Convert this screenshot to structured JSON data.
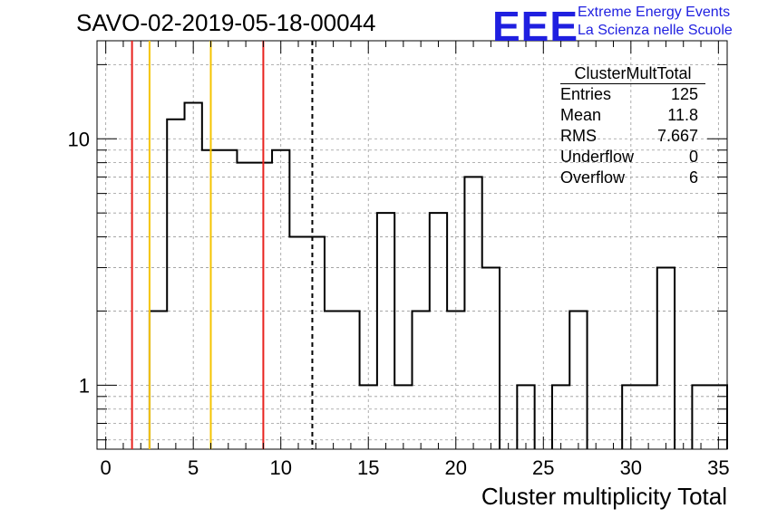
{
  "title": "SAVO-02-2019-05-18-00044",
  "logo": {
    "mark": "EEE",
    "line1": "Extreme Energy Events",
    "line2": "La Scienza nelle Scuole"
  },
  "stats": {
    "name": "ClusterMultTotal",
    "rows": [
      {
        "label": "Entries",
        "value": "125"
      },
      {
        "label": "Mean",
        "value": "11.8"
      },
      {
        "label": "RMS",
        "value": "7.667"
      },
      {
        "label": "Underflow",
        "value": "0"
      },
      {
        "label": "Overflow",
        "value": "6"
      }
    ]
  },
  "chart_data": {
    "type": "histogram",
    "xlabel": "Cluster multiplicity Total",
    "ylabel": "",
    "log_y": true,
    "grid": true,
    "xlim": [
      -0.5,
      35.5
    ],
    "ylim": [
      0.55,
      25
    ],
    "x_ticks": [
      0,
      5,
      10,
      15,
      20,
      25,
      30,
      35
    ],
    "y_ticks": [
      1,
      10
    ],
    "bins": [
      {
        "x": 0,
        "y": 0
      },
      {
        "x": 1,
        "y": 0
      },
      {
        "x": 2,
        "y": 0
      },
      {
        "x": 3,
        "y": 2
      },
      {
        "x": 4,
        "y": 12
      },
      {
        "x": 5,
        "y": 14
      },
      {
        "x": 6,
        "y": 9
      },
      {
        "x": 7,
        "y": 9
      },
      {
        "x": 8,
        "y": 8
      },
      {
        "x": 9,
        "y": 8
      },
      {
        "x": 10,
        "y": 9
      },
      {
        "x": 11,
        "y": 4
      },
      {
        "x": 12,
        "y": 4
      },
      {
        "x": 13,
        "y": 2
      },
      {
        "x": 14,
        "y": 2
      },
      {
        "x": 15,
        "y": 1
      },
      {
        "x": 16,
        "y": 5
      },
      {
        "x": 17,
        "y": 1
      },
      {
        "x": 18,
        "y": 2
      },
      {
        "x": 19,
        "y": 5
      },
      {
        "x": 20,
        "y": 2
      },
      {
        "x": 21,
        "y": 7
      },
      {
        "x": 22,
        "y": 3
      },
      {
        "x": 23,
        "y": 0
      },
      {
        "x": 24,
        "y": 1
      },
      {
        "x": 25,
        "y": 0
      },
      {
        "x": 26,
        "y": 1
      },
      {
        "x": 27,
        "y": 2
      },
      {
        "x": 28,
        "y": 0
      },
      {
        "x": 29,
        "y": 0
      },
      {
        "x": 30,
        "y": 1
      },
      {
        "x": 31,
        "y": 1
      },
      {
        "x": 32,
        "y": 3
      },
      {
        "x": 33,
        "y": 0
      },
      {
        "x": 34,
        "y": 1
      },
      {
        "x": 35,
        "y": 1
      }
    ],
    "markers": [
      {
        "x": 1.5,
        "color": "#e8221e",
        "style": "solid"
      },
      {
        "x": 2.5,
        "color": "#f5c400",
        "style": "solid"
      },
      {
        "x": 6.0,
        "color": "#f5c400",
        "style": "solid"
      },
      {
        "x": 9.0,
        "color": "#e8221e",
        "style": "solid"
      },
      {
        "x": 11.8,
        "color": "#000000",
        "style": "dashed"
      }
    ]
  }
}
